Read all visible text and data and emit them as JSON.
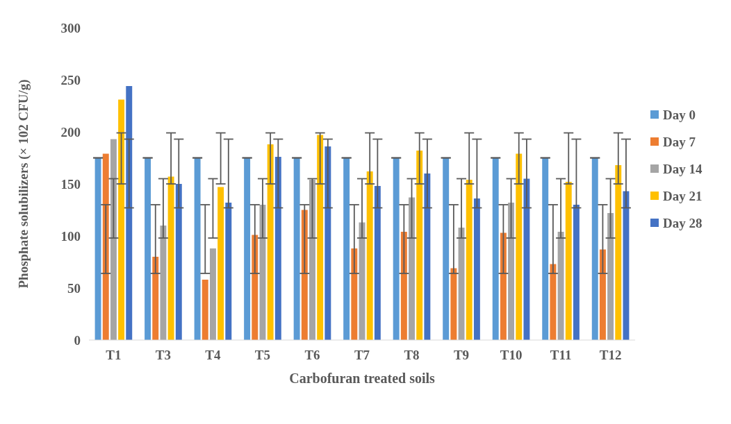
{
  "chart_data": {
    "type": "bar",
    "xlabel": "Carbofuran treated soils",
    "ylabel": "Phosphate solubilizers (× 102 CFU/g)",
    "categories": [
      "T1",
      "T3",
      "T4",
      "T5",
      "T6",
      "T7",
      "T8",
      "T9",
      "T10",
      "T11",
      "T12"
    ],
    "series": [
      {
        "name": "Day 0",
        "color": "#5b9bd5",
        "values": [
          175,
          175,
          175,
          175,
          175,
          175,
          175,
          175,
          175,
          175,
          175
        ],
        "errors": [
          0,
          0,
          0,
          0,
          0,
          0,
          0,
          0,
          0,
          0,
          0
        ]
      },
      {
        "name": "Day 7",
        "color": "#ed7d31",
        "values": [
          179,
          80,
          58,
          101,
          125,
          88,
          104,
          69,
          103,
          73,
          87
        ],
        "errors": [
          [
            64,
            130
          ],
          [
            64,
            130
          ],
          [
            64,
            130
          ],
          [
            64,
            130
          ],
          [
            64,
            130
          ],
          [
            64,
            130
          ],
          [
            64,
            130
          ],
          [
            64,
            130
          ],
          [
            64,
            130
          ],
          [
            64,
            130
          ],
          [
            64,
            130
          ]
        ]
      },
      {
        "name": "Day 14",
        "color": "#a5a5a5",
        "values": [
          193,
          110,
          88,
          130,
          154,
          113,
          137,
          108,
          132,
          104,
          122
        ],
        "errors": [
          [
            98,
            155
          ],
          [
            98,
            155
          ],
          [
            98,
            155
          ],
          [
            98,
            155
          ],
          [
            98,
            155
          ],
          [
            98,
            155
          ],
          [
            98,
            155
          ],
          [
            98,
            155
          ],
          [
            98,
            155
          ],
          [
            98,
            155
          ],
          [
            98,
            155
          ]
        ]
      },
      {
        "name": "Day 21",
        "color": "#ffc000",
        "values": [
          231,
          157,
          147,
          188,
          197,
          162,
          182,
          154,
          179,
          152,
          168
        ],
        "errors": [
          [
            150,
            199
          ],
          [
            150,
            199
          ],
          [
            150,
            199
          ],
          [
            150,
            199
          ],
          [
            150,
            199
          ],
          [
            150,
            199
          ],
          [
            150,
            199
          ],
          [
            150,
            199
          ],
          [
            150,
            199
          ],
          [
            150,
            199
          ],
          [
            150,
            199
          ]
        ]
      },
      {
        "name": "Day 28",
        "color": "#4472c4",
        "values": [
          244,
          150,
          132,
          176,
          186,
          148,
          160,
          136,
          155,
          130,
          143
        ],
        "errors": [
          [
            127,
            193
          ],
          [
            127,
            193
          ],
          [
            127,
            193
          ],
          [
            127,
            193
          ],
          [
            127,
            193
          ],
          [
            127,
            193
          ],
          [
            127,
            193
          ],
          [
            127,
            193
          ],
          [
            127,
            193
          ],
          [
            127,
            193
          ],
          [
            127,
            193
          ]
        ]
      }
    ],
    "ylim": [
      0,
      300
    ],
    "yticks": [
      0,
      50,
      100,
      150,
      200,
      250,
      300
    ],
    "grid": false,
    "legend": "right"
  }
}
